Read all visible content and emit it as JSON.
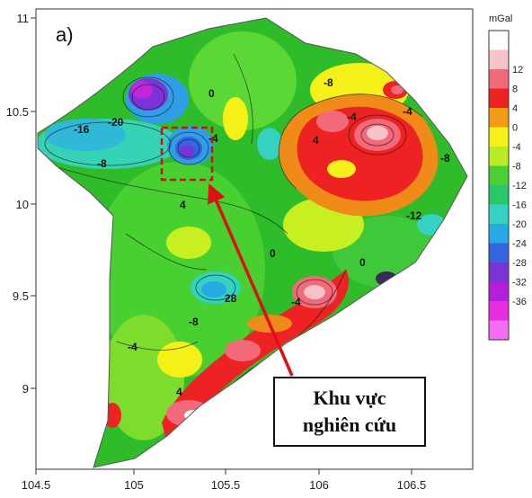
{
  "panel_label": "a)",
  "colorbar": {
    "unit": "mGal",
    "labels": [
      "12",
      "8",
      "4",
      "0",
      "-4",
      "-8",
      "-12",
      "-16",
      "-20",
      "-24",
      "-28",
      "-32",
      "-36"
    ],
    "colors": [
      "#ffffff",
      "#f7c2c8",
      "#f26a7a",
      "#ee2222",
      "#f59a14",
      "#f4f018",
      "#b8ec25",
      "#4ccf33",
      "#2ac66a",
      "#33d2c2",
      "#27a9e6",
      "#3464e0",
      "#7a33d6",
      "#b31fd9",
      "#e92de1",
      "#f36ef0"
    ]
  },
  "axes": {
    "x_ticks": [
      "104.5",
      "105",
      "105.5",
      "106",
      "106.5"
    ],
    "y_ticks": [
      "11",
      "10.5",
      "10",
      "9.5",
      "9"
    ]
  },
  "contour_labels": [
    "-20",
    "-16",
    "-8",
    "4",
    "-4",
    "0",
    "-8",
    "-4",
    "4",
    "-4",
    "-8",
    "-12",
    "0",
    "-4",
    "28",
    "-4",
    "-8",
    "4",
    "0"
  ],
  "callout": {
    "line1": "Khu vực",
    "line2": "nghiên cứu"
  },
  "colors": {
    "study_area_box": "#cc1111",
    "arrow": "#dd1111",
    "frame": "#333333"
  }
}
